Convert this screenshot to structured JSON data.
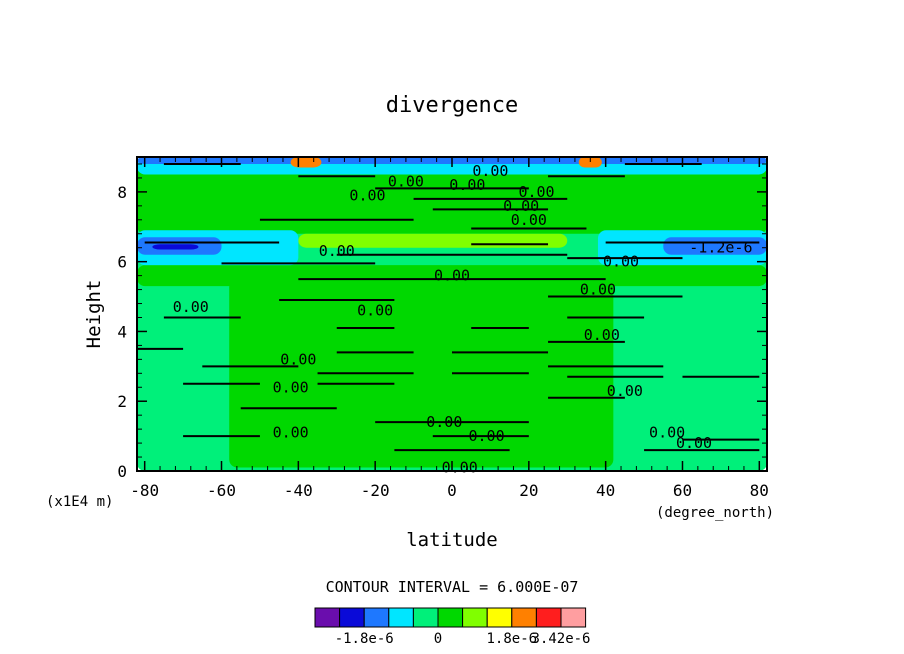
{
  "chart_data": {
    "type": "heatmap",
    "title": "divergence",
    "xlabel": "latitude",
    "ylabel": "Height",
    "x_units": "(degree_north)",
    "y_units": "(x1E4 m)",
    "xlim": [
      -82,
      82
    ],
    "ylim": [
      0,
      9
    ],
    "x_ticks": [
      -80,
      -60,
      -40,
      -20,
      0,
      20,
      40,
      60,
      80
    ],
    "y_ticks": [
      0,
      2,
      4,
      6,
      8
    ],
    "x_tick_labels": [
      "-80",
      "-60",
      "-40",
      "-20",
      "0",
      "20",
      "40",
      "60",
      "80"
    ],
    "y_tick_labels": [
      "0",
      "2",
      "4",
      "6",
      "8"
    ],
    "contour_interval_text": "CONTOUR INTERVAL = 6.000E-07",
    "colorbar": {
      "colors": [
        "#6a0dad",
        "#0a0ad8",
        "#1e78ff",
        "#00e6ff",
        "#00f07a",
        "#00d800",
        "#80ff00",
        "#ffff00",
        "#ff8000",
        "#ff1e1e",
        "#ff9ea0"
      ],
      "labels": [
        "-1.8e-6",
        "0",
        "1.8e-6",
        "3.42e-6"
      ],
      "label_positions": [
        2,
        5,
        8,
        10
      ]
    },
    "bands": [
      {
        "level": "negative",
        "color": "#00f07a",
        "y0": 0.0,
        "y1": 9.0
      },
      {
        "level": "positive",
        "color": "#00d800",
        "y0": 0.1,
        "y1": 5.5,
        "x0": -58,
        "x1": 42
      },
      {
        "level": "positive",
        "color": "#00d800",
        "y0": 5.3,
        "y1": 5.9
      },
      {
        "level": "positive",
        "color": "#00d800",
        "y0": 6.8,
        "y1": 8.7
      },
      {
        "level": "positive",
        "color": "#80ff00",
        "y0": 6.4,
        "y1": 6.8,
        "x0": -40,
        "x1": 30
      },
      {
        "level": "negative",
        "color": "#00e6ff",
        "y0": 5.9,
        "y1": 6.9,
        "x0": -82,
        "x1": -40
      },
      {
        "level": "negative",
        "color": "#00e6ff",
        "y0": 5.9,
        "y1": 6.9,
        "x0": 38,
        "x1": 82
      },
      {
        "level": "negative",
        "color": "#1e78ff",
        "y0": 6.2,
        "y1": 6.7,
        "x0": -82,
        "x1": -60
      },
      {
        "level": "negative",
        "color": "#1e78ff",
        "y0": 6.2,
        "y1": 6.7,
        "x0": 55,
        "x1": 82
      },
      {
        "level": "negative",
        "color": "#0a0ad8",
        "y0": 6.35,
        "y1": 6.5,
        "x0": -78,
        "x1": -66
      },
      {
        "level": "negative",
        "color": "#00e6ff",
        "y0": 8.5,
        "y1": 9.0
      },
      {
        "level": "negative",
        "color": "#1e78ff",
        "y0": 8.8,
        "y1": 9.0
      },
      {
        "level": "positive",
        "color": "#ff8000",
        "y0": 8.7,
        "y1": 9.0,
        "x0": -42,
        "x1": -34
      },
      {
        "level": "positive",
        "color": "#ff8000",
        "y0": 8.7,
        "y1": 9.0,
        "x0": 33,
        "x1": 39
      }
    ],
    "contour_labels": [
      {
        "x": -12,
        "y": 8.3,
        "text": "0.00"
      },
      {
        "x": 4,
        "y": 8.2,
        "text": "0.00"
      },
      {
        "x": 10,
        "y": 8.6,
        "text": "0.00"
      },
      {
        "x": -22,
        "y": 7.9,
        "text": "0.00"
      },
      {
        "x": 22,
        "y": 8.0,
        "text": "0.00"
      },
      {
        "x": 18,
        "y": 7.6,
        "text": "0.00"
      },
      {
        "x": 20,
        "y": 7.2,
        "text": "0.00"
      },
      {
        "x": -30,
        "y": 6.3,
        "text": "0.00"
      },
      {
        "x": 44,
        "y": 6.0,
        "text": "0.00"
      },
      {
        "x": 70,
        "y": 6.4,
        "text": "-1.2e-6"
      },
      {
        "x": 0,
        "y": 5.6,
        "text": "0.00"
      },
      {
        "x": 38,
        "y": 5.2,
        "text": "0.00"
      },
      {
        "x": -68,
        "y": 4.7,
        "text": "0.00"
      },
      {
        "x": -20,
        "y": 4.6,
        "text": "0.00"
      },
      {
        "x": 39,
        "y": 3.9,
        "text": "0.00"
      },
      {
        "x": -40,
        "y": 3.2,
        "text": "0.00"
      },
      {
        "x": -42,
        "y": 2.4,
        "text": "0.00"
      },
      {
        "x": 45,
        "y": 2.3,
        "text": "0.00"
      },
      {
        "x": -42,
        "y": 1.1,
        "text": "0.00"
      },
      {
        "x": -2,
        "y": 1.4,
        "text": "0.00"
      },
      {
        "x": 9,
        "y": 1.0,
        "text": "0.00"
      },
      {
        "x": 56,
        "y": 1.1,
        "text": "0.00"
      },
      {
        "x": 63,
        "y": 0.8,
        "text": "0.00"
      },
      {
        "x": 2,
        "y": 0.1,
        "text": "0.00"
      }
    ],
    "contour_dashes": [
      {
        "x0": -40,
        "x1": -20,
        "y": 8.45
      },
      {
        "x0": 25,
        "x1": 45,
        "y": 8.45
      },
      {
        "x0": -75,
        "x1": -55,
        "y": 8.8
      },
      {
        "x0": 45,
        "x1": 65,
        "y": 8.8
      },
      {
        "x0": -20,
        "x1": 20,
        "y": 8.1
      },
      {
        "x0": -10,
        "x1": 30,
        "y": 7.8
      },
      {
        "x0": -5,
        "x1": 25,
        "y": 7.5
      },
      {
        "x0": -50,
        "x1": -10,
        "y": 7.2
      },
      {
        "x0": 5,
        "x1": 35,
        "y": 6.95
      },
      {
        "x0": -80,
        "x1": -45,
        "y": 6.55
      },
      {
        "x0": 40,
        "x1": 80,
        "y": 6.55
      },
      {
        "x0": 5,
        "x1": 25,
        "y": 6.5
      },
      {
        "x0": -30,
        "x1": 30,
        "y": 6.2
      },
      {
        "x0": 30,
        "x1": 60,
        "y": 6.1
      },
      {
        "x0": -60,
        "x1": -20,
        "y": 5.95
      },
      {
        "x0": -40,
        "x1": 40,
        "y": 5.5
      },
      {
        "x0": 25,
        "x1": 60,
        "y": 5.0
      },
      {
        "x0": -45,
        "x1": -15,
        "y": 4.9
      },
      {
        "x0": -75,
        "x1": -55,
        "y": 4.4
      },
      {
        "x0": 30,
        "x1": 50,
        "y": 4.4
      },
      {
        "x0": -30,
        "x1": -15,
        "y": 4.1
      },
      {
        "x0": 5,
        "x1": 20,
        "y": 4.1
      },
      {
        "x0": 25,
        "x1": 45,
        "y": 3.7
      },
      {
        "x0": -85,
        "x1": -70,
        "y": 3.5
      },
      {
        "x0": -30,
        "x1": -10,
        "y": 3.4
      },
      {
        "x0": 0,
        "x1": 25,
        "y": 3.4
      },
      {
        "x0": -65,
        "x1": -40,
        "y": 3.0
      },
      {
        "x0": 25,
        "x1": 55,
        "y": 3.0
      },
      {
        "x0": -35,
        "x1": -10,
        "y": 2.8
      },
      {
        "x0": 0,
        "x1": 20,
        "y": 2.8
      },
      {
        "x0": 30,
        "x1": 55,
        "y": 2.7
      },
      {
        "x0": 60,
        "x1": 80,
        "y": 2.7
      },
      {
        "x0": -70,
        "x1": -50,
        "y": 2.5
      },
      {
        "x0": -35,
        "x1": -15,
        "y": 2.5
      },
      {
        "x0": 25,
        "x1": 45,
        "y": 2.1
      },
      {
        "x0": -55,
        "x1": -30,
        "y": 1.8
      },
      {
        "x0": -20,
        "x1": 20,
        "y": 1.4
      },
      {
        "x0": -70,
        "x1": -50,
        "y": 1.0
      },
      {
        "x0": -5,
        "x1": 20,
        "y": 1.0
      },
      {
        "x0": 60,
        "x1": 80,
        "y": 0.9
      },
      {
        "x0": -15,
        "x1": 15,
        "y": 0.6
      },
      {
        "x0": 50,
        "x1": 80,
        "y": 0.6
      }
    ]
  }
}
